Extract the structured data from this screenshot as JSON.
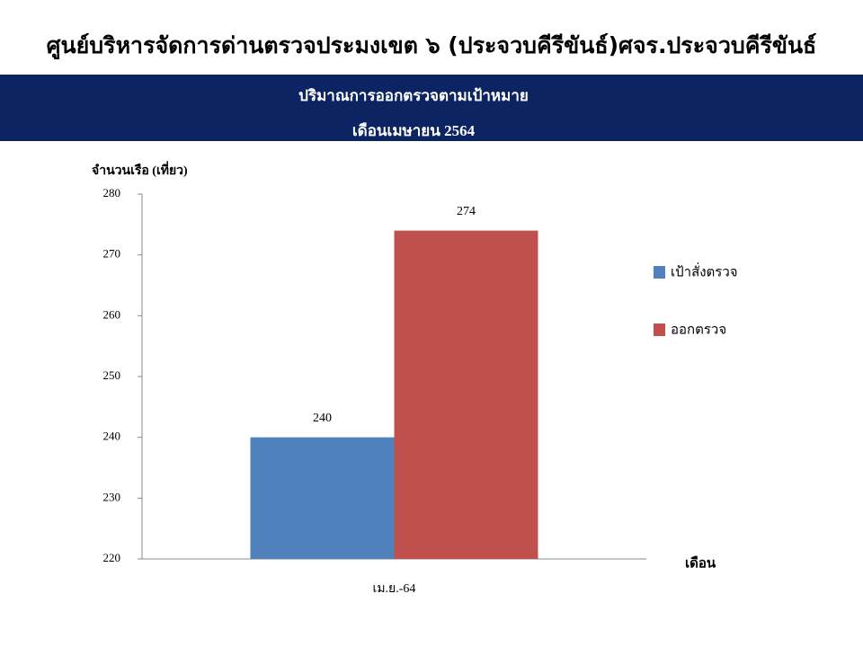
{
  "chart_data": {
    "type": "bar",
    "title": "ศูนย์บริหารจัดการด่านตรวจประมงเขต ๖ (ประจวบคีรีขันธ์)ศจร.ประจวบคีรีขันธ์",
    "subtitle": [
      "ปริมาณการออกตรวจตามเป้าหมาย",
      "เดือนเมษายน 2564"
    ],
    "y_label": "จำนวนเรือ (เที่ยว)",
    "x_label": "เดือน",
    "categories": [
      "เม.ย.-64"
    ],
    "series": [
      {
        "name": "เป้าสั่งตรวจ",
        "color": "#4f81bd",
        "values": [
          240
        ]
      },
      {
        "name": "ออกตรวจ",
        "color": "#c0504d",
        "values": [
          274
        ]
      }
    ],
    "ylim": [
      220,
      280
    ],
    "yticks": [
      220,
      230,
      240,
      250,
      260,
      270,
      280
    ],
    "grid": false,
    "legend": "right"
  }
}
